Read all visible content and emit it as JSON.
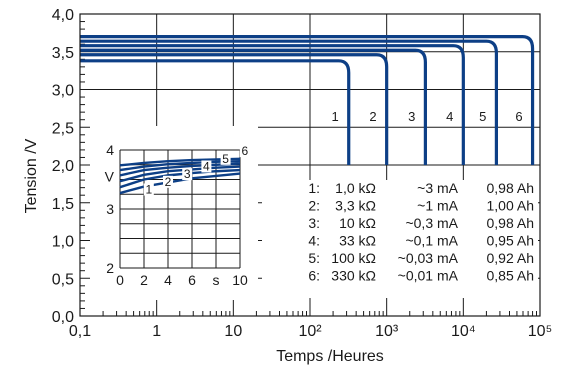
{
  "chart_data": {
    "type": "line",
    "xlabel": "Temps /Heures",
    "ylabel": "Tension /V",
    "x_scale": "log",
    "xlim": [
      0.1,
      100000
    ],
    "ylim": [
      0.0,
      4.0
    ],
    "grid": true,
    "x_tick_labels": [
      "0,1",
      "1",
      "10",
      "10²",
      "10³",
      "10⁴",
      "10⁵"
    ],
    "y_ticks": [
      0.0,
      0.5,
      1.0,
      1.5,
      2.0,
      2.5,
      3.0,
      3.5,
      4.0
    ],
    "y_tick_labels": [
      "0,0",
      "0,5",
      "1,0",
      "1,5",
      "2,0",
      "2,5",
      "3,0",
      "3,5",
      "4,0"
    ],
    "line_color": "#0d3f86",
    "series": [
      {
        "name": "1",
        "plateau_v": 3.38,
        "end_hours": 320
      },
      {
        "name": "2",
        "plateau_v": 3.46,
        "end_hours": 1000
      },
      {
        "name": "3",
        "plateau_v": 3.52,
        "end_hours": 3200
      },
      {
        "name": "4",
        "plateau_v": 3.58,
        "end_hours": 10000
      },
      {
        "name": "5",
        "plateau_v": 3.64,
        "end_hours": 27000
      },
      {
        "name": "6",
        "plateau_v": 3.7,
        "end_hours": 80000
      }
    ],
    "legend": [
      {
        "id": "1:",
        "load": "1,0 kΩ",
        "current": "~3 mA",
        "capacity": "0,98 Ah"
      },
      {
        "id": "2:",
        "load": "3,3 kΩ",
        "current": "~1 mA",
        "capacity": "1,00 Ah"
      },
      {
        "id": "3:",
        "load": "10 kΩ",
        "current": "~0,3 mA",
        "capacity": "0,98 Ah"
      },
      {
        "id": "4:",
        "load": "33 kΩ",
        "current": "~0,1 mA",
        "capacity": "0,95 Ah"
      },
      {
        "id": "5:",
        "load": "100 kΩ",
        "current": "~0,03 mA",
        "capacity": "0,92 Ah"
      },
      {
        "id": "6:",
        "load": "330 kΩ",
        "current": "~0,01 mA",
        "capacity": "0,85 Ah"
      }
    ],
    "inset": {
      "xlim": [
        0,
        10
      ],
      "ylim": [
        2,
        4
      ],
      "x_tick_labels": [
        "0",
        "2",
        "4",
        "6",
        "s",
        "10"
      ],
      "y_tick_labels": [
        "4",
        "V",
        "3",
        "2"
      ],
      "series": [
        {
          "name": "1",
          "values": [
            [
              0,
              3.27
            ],
            [
              2,
              3.38
            ],
            [
              4,
              3.45
            ],
            [
              6,
              3.52
            ],
            [
              8,
              3.56
            ],
            [
              10,
              3.6
            ]
          ]
        },
        {
          "name": "2",
          "values": [
            [
              0,
              3.37
            ],
            [
              2,
              3.5
            ],
            [
              4,
              3.57
            ],
            [
              6,
              3.61
            ],
            [
              8,
              3.64
            ],
            [
              10,
              3.66
            ]
          ]
        },
        {
          "name": "3",
          "values": [
            [
              0,
              3.47
            ],
            [
              2,
              3.58
            ],
            [
              4,
              3.64
            ],
            [
              6,
              3.67
            ],
            [
              8,
              3.7
            ],
            [
              10,
              3.72
            ]
          ]
        },
        {
          "name": "4",
          "values": [
            [
              0,
              3.57
            ],
            [
              2,
              3.66
            ],
            [
              4,
              3.7
            ],
            [
              6,
              3.73
            ],
            [
              8,
              3.75
            ],
            [
              10,
              3.77
            ]
          ]
        },
        {
          "name": "5",
          "values": [
            [
              0,
              3.66
            ],
            [
              2,
              3.72
            ],
            [
              4,
              3.76
            ],
            [
              6,
              3.78
            ],
            [
              8,
              3.8
            ],
            [
              10,
              3.81
            ]
          ]
        },
        {
          "name": "6",
          "values": [
            [
              0,
              3.74
            ],
            [
              2,
              3.78
            ],
            [
              4,
              3.81
            ],
            [
              6,
              3.83
            ],
            [
              8,
              3.84
            ],
            [
              10,
              3.85
            ]
          ]
        }
      ]
    }
  }
}
